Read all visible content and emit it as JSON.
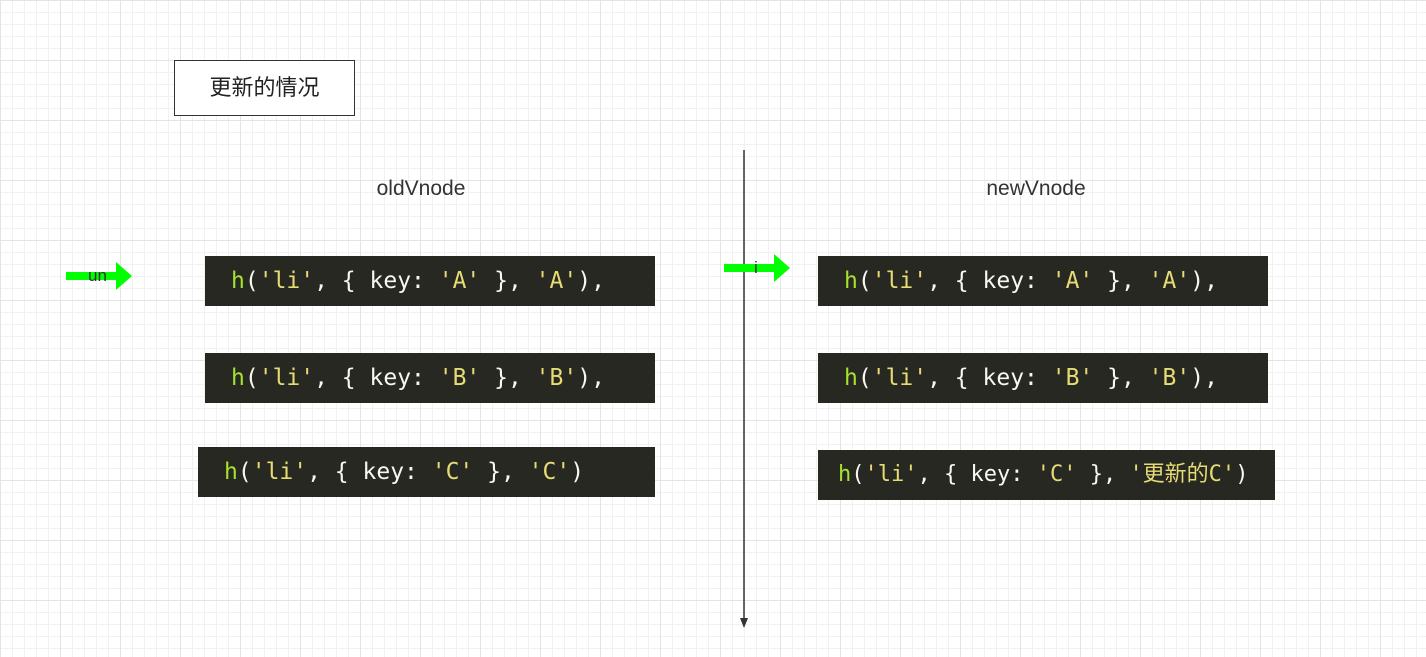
{
  "header": {
    "title": "更新的情况"
  },
  "old": {
    "label": "oldVnode",
    "pointer": "un",
    "lines": [
      [
        "h",
        "(",
        "'li'",
        ", { key: ",
        "'A'",
        " }, ",
        "'A'",
        "),"
      ],
      [
        "h",
        "(",
        "'li'",
        ", { key: ",
        "'B'",
        " }, ",
        "'B'",
        "),"
      ],
      [
        "h",
        "(",
        "'li'",
        ", { key: ",
        "'C'",
        " }, ",
        "'C'",
        ")"
      ]
    ]
  },
  "new": {
    "label": "newVnode",
    "pointer": "i",
    "lines": [
      [
        "h",
        "(",
        "'li'",
        ", { key: ",
        "'A'",
        " }, ",
        "'A'",
        "),"
      ],
      [
        "h",
        "(",
        "'li'",
        ", { key: ",
        "'B'",
        " }, ",
        "'B'",
        "),"
      ],
      [
        "h",
        "(",
        "'li'",
        ", { key: ",
        "'C'",
        " }, ",
        "'更新的C'",
        ")"
      ]
    ]
  }
}
